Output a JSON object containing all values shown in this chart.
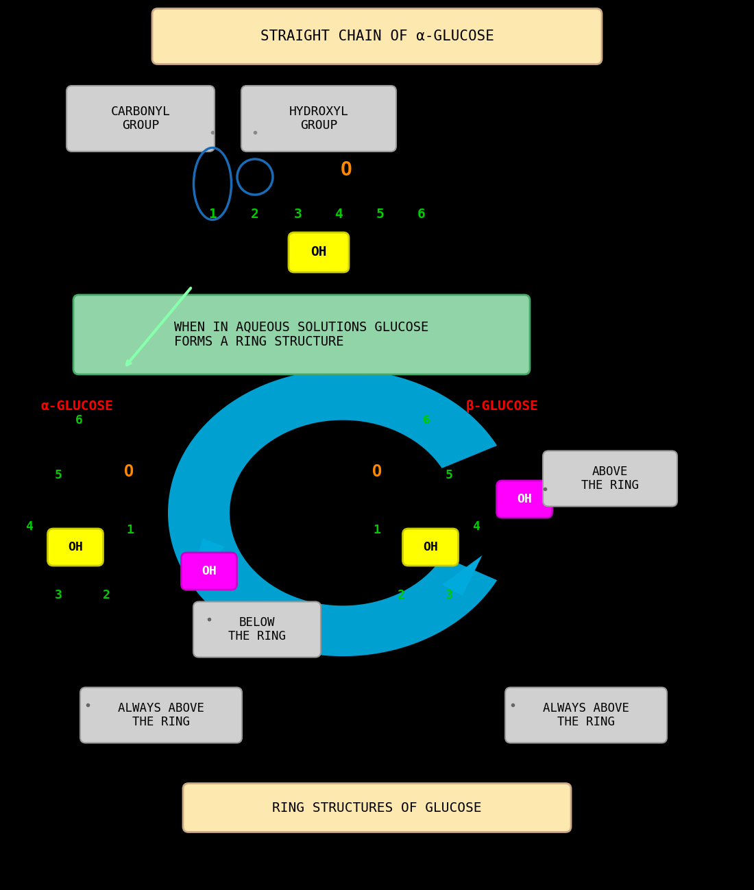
{
  "bg_color": "#000000",
  "title_top": "STRAIGHT CHAIN OF α-GLUCOSE",
  "title_bottom": "RING STRUCTURES OF GLUCOSE",
  "title_bg": "#fde8b0",
  "aqueous_text": "WHEN IN AQUEOUS SOLUTIONS GLUCOSE\nFORMS A RING STRUCTURE",
  "aqueous_bg": "#90d4a8",
  "alpha_label": "α-GLUCOSE",
  "beta_label": "β-GLUCOSE",
  "label_color": "#ff0000",
  "number_color": "#00cc00",
  "orange_O_color": "#ff8800",
  "blue_ellipse_color": "#1a6bb5",
  "cyan_arrow_color": "#00aadd",
  "green_arrow_color": "#88ffaa",
  "yellow_OH_bg": "#ffff00",
  "magenta_OH_bg": "#ff00ff",
  "box_bg": "#d0d0d0",
  "white_text": "#ffffff",
  "black_text": "#000000"
}
